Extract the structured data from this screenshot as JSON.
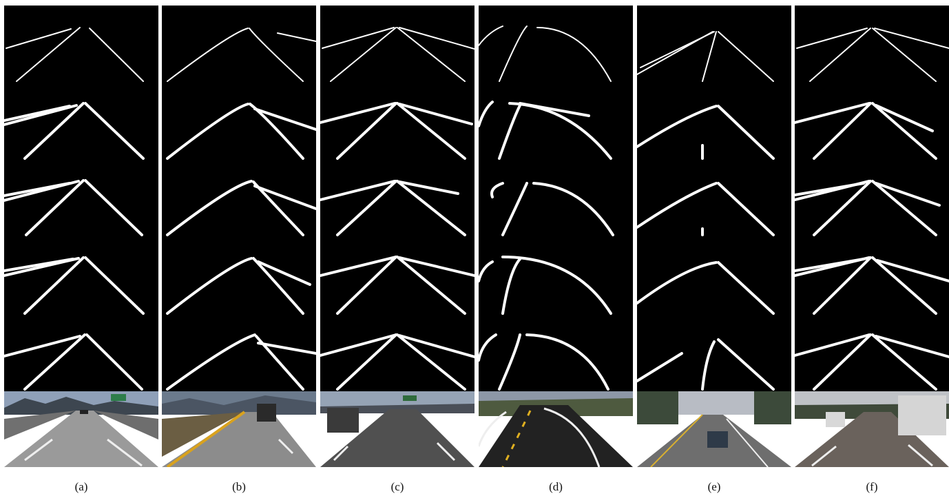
{
  "figure": {
    "captions": [
      "(a)",
      "(b)",
      "(c)",
      "(d)",
      "(e)",
      "(f)"
    ],
    "rows_per_column": 5,
    "photos": [
      {
        "scene": "highway-overpass",
        "sky": "#8fa0b8",
        "road": "#9a9a9a"
      },
      {
        "scene": "truck-yellow-line",
        "sky": "#6b7a8c",
        "road": "#8c8c8c"
      },
      {
        "scene": "suv-highway",
        "sky": "#95a3b5",
        "road": "#505050"
      },
      {
        "scene": "curved-road-dark",
        "sky": "#8d97a6",
        "road": "#222222"
      },
      {
        "scene": "city-road-car",
        "sky": "#b8bcc4",
        "road": "#6e6e6e"
      },
      {
        "scene": "highway-tanker",
        "sky": "#bfc2c6",
        "road": "#6a625c"
      }
    ]
  }
}
